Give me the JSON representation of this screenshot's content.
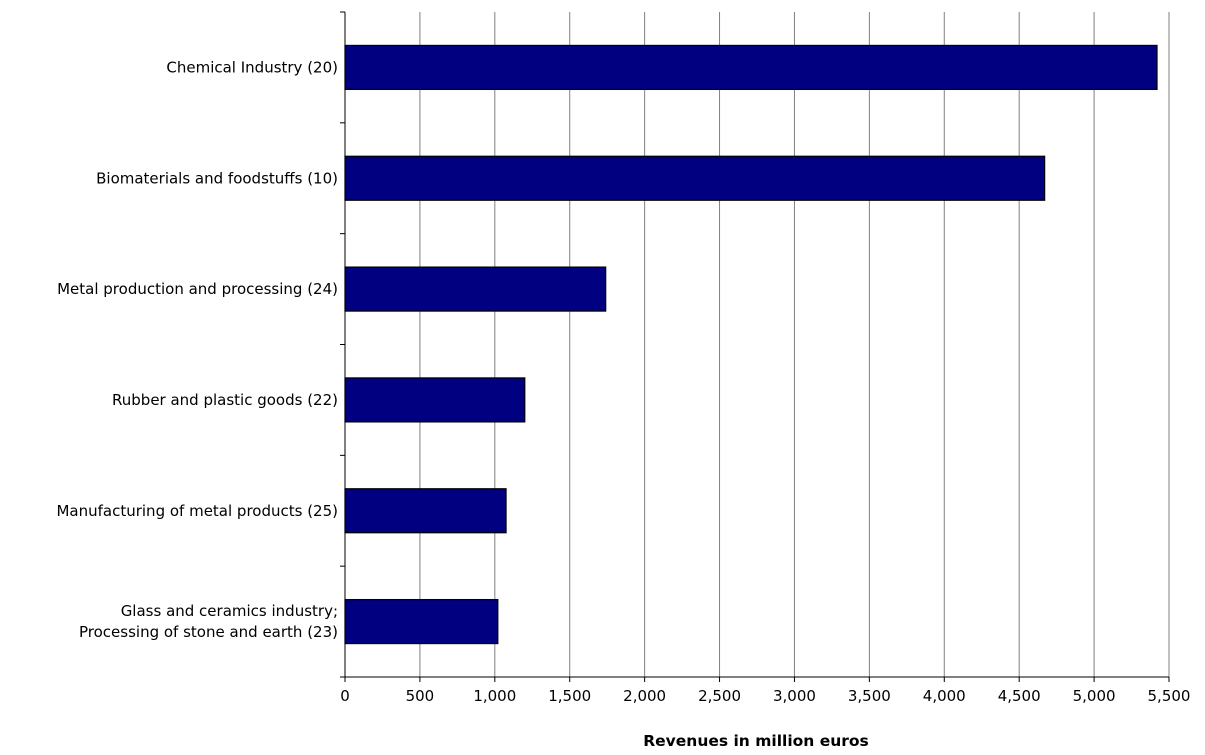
{
  "chart_data": {
    "type": "bar",
    "orientation": "horizontal",
    "categories": [
      [
        "Chemical Industry (20)"
      ],
      [
        "Biomaterials and foodstuffs (10)"
      ],
      [
        "Metal production and processing (24)"
      ],
      [
        "Rubber and plastic goods (22)"
      ],
      [
        "Manufacturing of metal products (25)"
      ],
      [
        "Glass and ceramics industry;",
        "Processing of stone and earth (23)"
      ]
    ],
    "values": [
      5420,
      4670,
      1740,
      1200,
      1075,
      1020
    ],
    "title": "",
    "xlabel": "Revenues in million euros",
    "ylabel": "",
    "xlim": [
      0,
      5500
    ],
    "ticks": [
      0,
      500,
      1000,
      1500,
      2000,
      2500,
      3000,
      3500,
      4000,
      4500,
      5000,
      5500
    ],
    "tick_labels": [
      "0",
      "500",
      "1,000",
      "1,500",
      "2,000",
      "2,500",
      "3,000",
      "3,500",
      "4,000",
      "4,500",
      "5,000",
      "5,500"
    ],
    "grid": "vertical",
    "legend": "none",
    "bar_color": "#000080",
    "grid_color": "#808080"
  }
}
